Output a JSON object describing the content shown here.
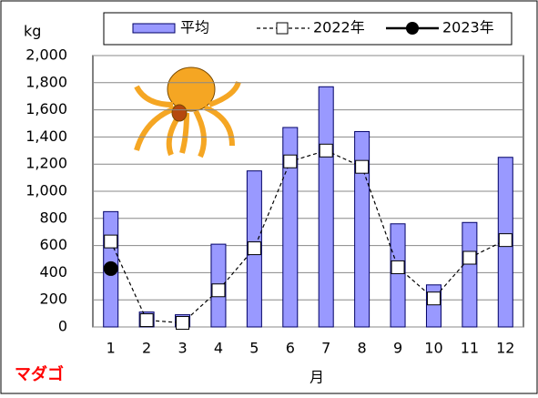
{
  "chart_data": {
    "type": "bar",
    "y_label": "kg",
    "x_label": "月",
    "annotation": "マダゴ",
    "categories": [
      "1",
      "2",
      "3",
      "4",
      "5",
      "6",
      "7",
      "8",
      "9",
      "10",
      "11",
      "12"
    ],
    "series": [
      {
        "name": "平均",
        "type": "bar",
        "color": "#9999ff",
        "values": [
          850,
          110,
          90,
          610,
          1150,
          1470,
          1770,
          1440,
          760,
          310,
          770,
          1250
        ]
      },
      {
        "name": "2022年",
        "type": "line",
        "color": "#000000",
        "dashed": true,
        "marker": "square",
        "values": [
          630,
          50,
          30,
          270,
          580,
          1220,
          1300,
          1180,
          440,
          210,
          510,
          640
        ]
      },
      {
        "name": "2023年",
        "type": "line",
        "color": "#000000",
        "dashed": false,
        "marker": "circle",
        "values": [
          430,
          null,
          null,
          null,
          null,
          null,
          null,
          null,
          null,
          null,
          null,
          null
        ]
      }
    ],
    "ylim": [
      0,
      2000
    ],
    "yticks": [
      0,
      200,
      400,
      600,
      800,
      {
        "value": 1000,
        "label": "1,000"
      },
      {
        "value": 1200,
        "label": "1,200"
      },
      {
        "value": 1400,
        "label": "1,400"
      },
      {
        "value": 1600,
        "label": "1,600"
      },
      {
        "value": 1800,
        "label": "1,800"
      },
      {
        "value": 2000,
        "label": "2,000"
      }
    ],
    "grid": true
  }
}
